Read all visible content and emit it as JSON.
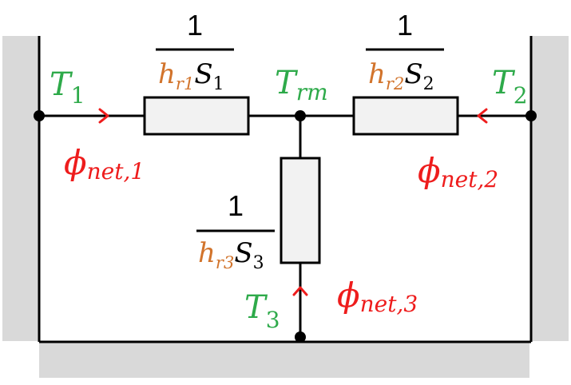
{
  "colors": {
    "wall": "#d9d9d9",
    "wire": "#000000",
    "resistor_fill": "#f2f2f2",
    "temperature": "#2eaa4a",
    "flux": "#ee1c1c",
    "coefficient": "#d2742c"
  },
  "nodes": {
    "t1": {
      "main": "T",
      "sub": "1"
    },
    "t2": {
      "main": "T",
      "sub": "2"
    },
    "t3": {
      "main": "T",
      "sub": "3"
    },
    "trm": {
      "main": "T",
      "sub": "rm"
    }
  },
  "fluxes": {
    "phi1": {
      "main": "ϕ",
      "sub": "net,1"
    },
    "phi2": {
      "main": "ϕ",
      "sub": "net,2"
    },
    "phi3": {
      "main": "ϕ",
      "sub": "net,3"
    }
  },
  "resistances": {
    "r1": {
      "numerator": "1",
      "h": "h",
      "h_sub": "r1",
      "s": "S",
      "s_sub": "1"
    },
    "r2": {
      "numerator": "1",
      "h": "h",
      "h_sub": "r2",
      "s": "S",
      "s_sub": "2"
    },
    "r3": {
      "numerator": "1",
      "h": "h",
      "h_sub": "r3",
      "s": "S",
      "s_sub": "3"
    }
  }
}
